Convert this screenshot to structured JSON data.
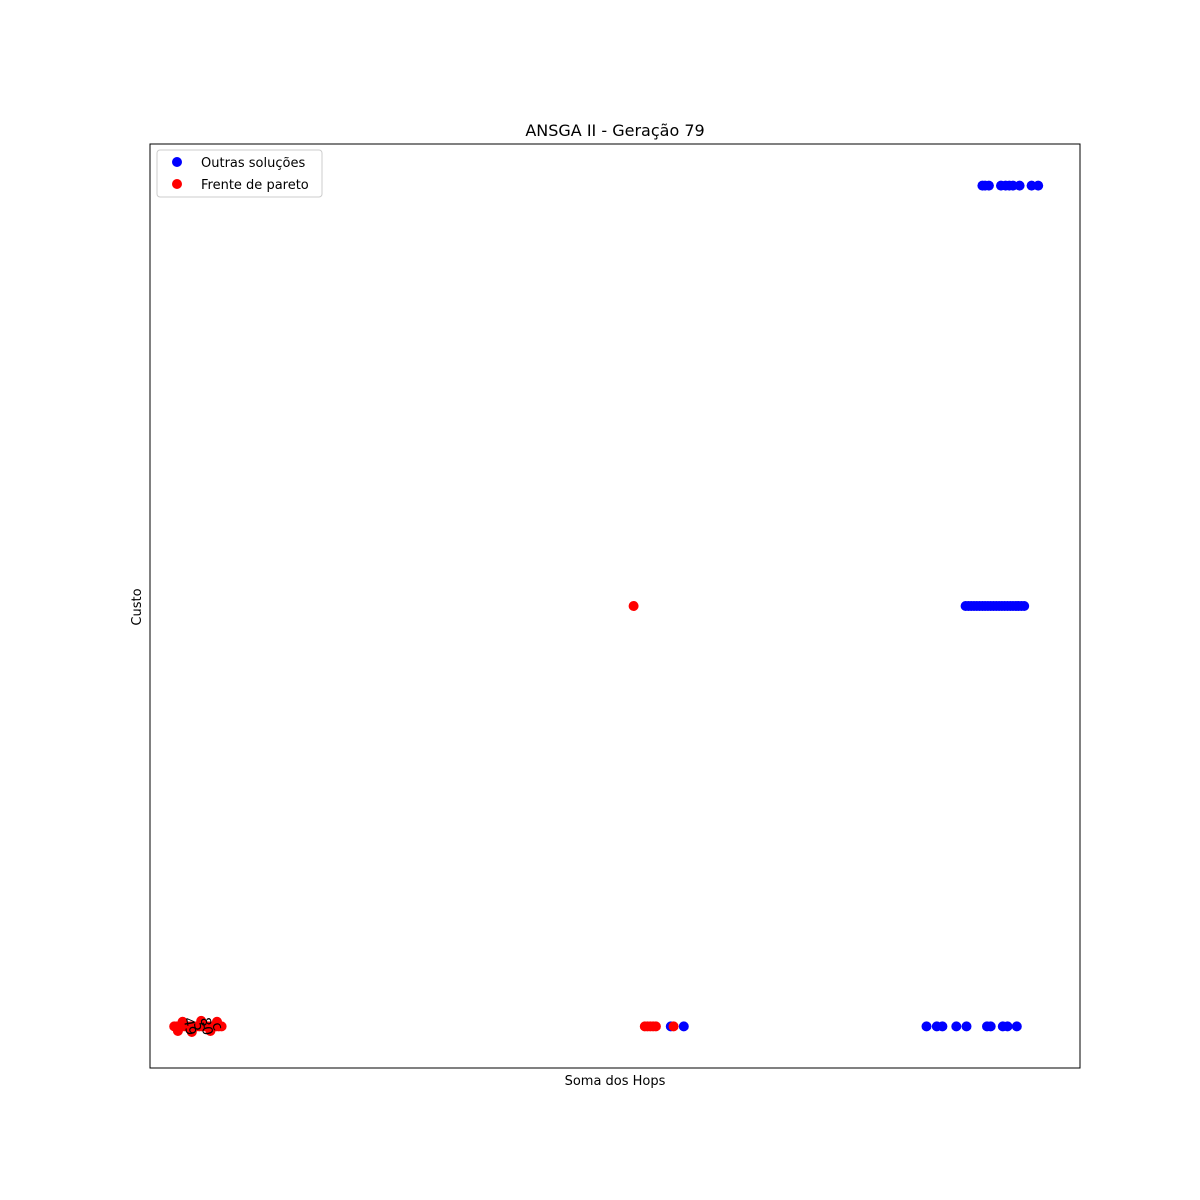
{
  "chart_data": {
    "type": "scatter",
    "title": "ANSGA II - Geração 79",
    "xlabel": "Soma dos Hops",
    "ylabel": "Custo",
    "xticks_visible": false,
    "yticks_visible": false,
    "grid": false,
    "legend_position": "top-left",
    "xlim": [
      0,
      100
    ],
    "ylim": [
      0,
      100
    ],
    "series": [
      {
        "name": "Outras soluções",
        "color": "#0000ff",
        "points": [
          [
            89.5,
            95.5
          ],
          [
            89.8,
            95.5
          ],
          [
            90.2,
            95.5
          ],
          [
            91.5,
            95.5
          ],
          [
            92.0,
            95.5
          ],
          [
            92.4,
            95.5
          ],
          [
            92.8,
            95.5
          ],
          [
            93.5,
            95.5
          ],
          [
            94.8,
            95.5
          ],
          [
            95.5,
            95.5
          ],
          [
            87.7,
            50
          ],
          [
            88.0,
            50
          ],
          [
            88.3,
            50
          ],
          [
            88.6,
            50
          ],
          [
            88.9,
            50
          ],
          [
            89.2,
            50
          ],
          [
            89.5,
            50
          ],
          [
            89.8,
            50
          ],
          [
            90.1,
            50
          ],
          [
            90.4,
            50
          ],
          [
            90.7,
            50
          ],
          [
            91.0,
            50
          ],
          [
            91.3,
            50
          ],
          [
            91.6,
            50
          ],
          [
            91.9,
            50
          ],
          [
            92.2,
            50
          ],
          [
            92.5,
            50
          ],
          [
            92.8,
            50
          ],
          [
            93.1,
            50
          ],
          [
            93.4,
            50
          ],
          [
            93.7,
            50
          ],
          [
            94.0,
            50
          ],
          [
            56.0,
            4.5
          ],
          [
            57.4,
            4.5
          ],
          [
            83.5,
            4.5
          ],
          [
            84.6,
            4.5
          ],
          [
            85.2,
            4.5
          ],
          [
            86.7,
            4.5
          ],
          [
            87.8,
            4.5
          ],
          [
            90.0,
            4.5
          ],
          [
            90.4,
            4.5
          ],
          [
            91.7,
            4.5
          ],
          [
            92.2,
            4.5
          ],
          [
            93.2,
            4.5
          ]
        ]
      },
      {
        "name": "Frente de pareto",
        "color": "#ff0000",
        "points": [
          [
            52.0,
            50
          ],
          [
            53.2,
            4.5
          ],
          [
            53.5,
            4.5
          ],
          [
            53.8,
            4.5
          ],
          [
            54.1,
            4.5
          ],
          [
            54.4,
            4.5
          ],
          [
            56.3,
            4.5
          ],
          [
            2.6,
            4.5
          ],
          [
            2.9,
            4.5
          ],
          [
            3.2,
            4.5
          ],
          [
            3.5,
            4.5
          ],
          [
            3.8,
            4.5
          ],
          [
            4.1,
            4.5
          ],
          [
            4.4,
            4.5
          ],
          [
            4.7,
            4.5
          ],
          [
            5.0,
            4.5
          ],
          [
            5.3,
            4.5
          ],
          [
            5.6,
            4.5
          ],
          [
            5.9,
            4.5
          ],
          [
            6.2,
            4.5
          ],
          [
            6.5,
            4.5
          ],
          [
            6.8,
            4.5
          ],
          [
            7.1,
            4.5
          ],
          [
            7.4,
            4.5
          ],
          [
            7.7,
            4.5
          ],
          [
            3.0,
            4.0
          ],
          [
            3.5,
            5.0
          ],
          [
            4.5,
            3.9
          ],
          [
            5.5,
            5.1
          ],
          [
            6.5,
            4.0
          ],
          [
            7.2,
            5.0
          ]
        ]
      }
    ],
    "annotations": [
      {
        "text": "49",
        "x": 4.2,
        "y": 4.5,
        "rotation": 80
      },
      {
        "text": "5",
        "x": 5.2,
        "y": 4.5,
        "rotation": 80
      },
      {
        "text": "c",
        "x": 7.2,
        "y": 4.5,
        "rotation": 70
      },
      {
        "text": "80",
        "x": 6.0,
        "y": 4.5,
        "rotation": 80
      }
    ]
  }
}
